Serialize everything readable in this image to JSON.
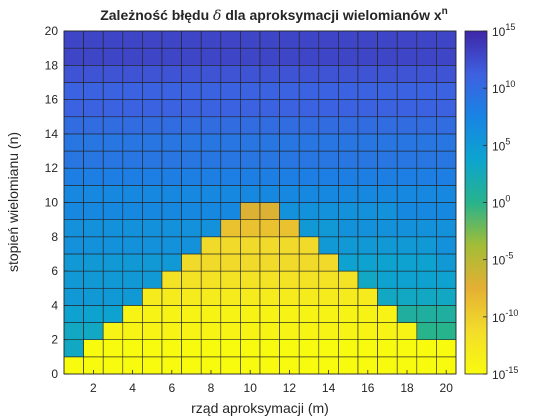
{
  "chart_data": {
    "type": "heatmap",
    "title": {
      "main": "Zależność błędu",
      "symbol": "δ",
      "rest": "dla aproksymacji wielomianów x",
      "superscript": "n"
    },
    "xlabel": "rząd aproksymacji (m)",
    "ylabel": "stopień wielomianu (n)",
    "x_ticks": [
      2,
      4,
      6,
      8,
      10,
      12,
      14,
      16,
      18,
      20
    ],
    "y_ticks": [
      0,
      2,
      4,
      6,
      8,
      10,
      12,
      14,
      16,
      18,
      20
    ],
    "m_range": [
      1,
      21
    ],
    "n_range": [
      0,
      20
    ],
    "color_scale": "log",
    "color_range_exponent": [
      -15,
      15
    ],
    "colorbar_ticks": [
      {
        "base": "10",
        "exp": "15"
      },
      {
        "base": "10",
        "exp": "10"
      },
      {
        "base": "10",
        "exp": "5"
      },
      {
        "base": "10",
        "exp": "0"
      },
      {
        "base": "10",
        "exp": "-5"
      },
      {
        "base": "10",
        "exp": "-10"
      },
      {
        "base": "10",
        "exp": "-15"
      }
    ],
    "colormap": "parula",
    "rows_description": "values are log10 of error; rows listed from n=0 (bottom) to n=19 (top), columns m=1..20",
    "values_log10": [
      [
        -15,
        -16,
        -16,
        -16,
        -16,
        -16,
        -16,
        -16,
        -16,
        -16,
        -16,
        -16,
        -16,
        -16,
        -16,
        -16,
        -16,
        -16,
        -16,
        -15
      ],
      [
        3,
        -15,
        -15,
        -15,
        -15,
        -15,
        -15,
        -15,
        -15,
        -15,
        -15,
        -15,
        -15,
        -15,
        -15,
        -15,
        -15,
        -15,
        -15,
        -15
      ],
      [
        3,
        3,
        -14,
        -14,
        -14,
        -14,
        -14,
        -14,
        -14,
        -14,
        -14,
        -14,
        -14,
        -14,
        -14,
        -14,
        -14,
        -14,
        0,
        0
      ],
      [
        4,
        4,
        4,
        -14,
        -14,
        -14,
        -14,
        -14,
        -14,
        -14,
        -14,
        -14,
        -14,
        -14,
        -14,
        -14,
        -14,
        1,
        1,
        1
      ],
      [
        5,
        5,
        5,
        5,
        -13,
        -13,
        -13,
        -13,
        -13,
        -13,
        -13,
        -13,
        -13,
        -13,
        -13,
        -13,
        3,
        3,
        3,
        3
      ],
      [
        5,
        5,
        5,
        5,
        5,
        -12,
        -12,
        -12,
        -12,
        -12,
        -12,
        -12,
        -12,
        -12,
        -12,
        3,
        4,
        4,
        4,
        4
      ],
      [
        5,
        5,
        5,
        5,
        5,
        5,
        -11,
        -11,
        -11,
        -11,
        -11,
        -11,
        -11,
        -11,
        4,
        4,
        4,
        4,
        4,
        5
      ],
      [
        6,
        6,
        6,
        6,
        6,
        6,
        6,
        -11,
        -11,
        -11,
        -11,
        -11,
        -11,
        5,
        5,
        5,
        5,
        5,
        5,
        6
      ],
      [
        6,
        6,
        6,
        6,
        6,
        6,
        6,
        6,
        -9,
        -9,
        -9,
        -9,
        5,
        5,
        6,
        6,
        6,
        6,
        6,
        6
      ],
      [
        7,
        7,
        7,
        7,
        7,
        7,
        7,
        7,
        7,
        -7,
        -7,
        6,
        6,
        6,
        6,
        6,
        6,
        7,
        7,
        7
      ],
      [
        7,
        7,
        7,
        7,
        7,
        7,
        7,
        7,
        7,
        7,
        7,
        7,
        7,
        7,
        7,
        7,
        7,
        7,
        7,
        7
      ],
      [
        8,
        8,
        8,
        8,
        8,
        8,
        8,
        8,
        8,
        8,
        8,
        8,
        8,
        8,
        8,
        8,
        8,
        8,
        8,
        8
      ],
      [
        9,
        9,
        9,
        9,
        9,
        9,
        9,
        9,
        9,
        9,
        9,
        9,
        9,
        9,
        9,
        9,
        9,
        9,
        9,
        9
      ],
      [
        9,
        9,
        9,
        9,
        9,
        9,
        9,
        9,
        9,
        9,
        9,
        9,
        9,
        9,
        9,
        9,
        9,
        9,
        9,
        9
      ],
      [
        10,
        10,
        10,
        10,
        10,
        10,
        10,
        10,
        10,
        10,
        10,
        10,
        10,
        10,
        10,
        10,
        10,
        10,
        10,
        10
      ],
      [
        11,
        11,
        11,
        11,
        11,
        11,
        11,
        11,
        11,
        11,
        11,
        11,
        11,
        11,
        11,
        11,
        11,
        11,
        11,
        11
      ],
      [
        11,
        11,
        11,
        11,
        11,
        11,
        11,
        11,
        11,
        11,
        11,
        11,
        11,
        11,
        11,
        11,
        11,
        11,
        11,
        11
      ],
      [
        12,
        12,
        12,
        12,
        12,
        12,
        12,
        12,
        12,
        12,
        12,
        12,
        12,
        12,
        12,
        12,
        12,
        12,
        12,
        12
      ],
      [
        13,
        13,
        13,
        13,
        13,
        13,
        13,
        13,
        13,
        13,
        13,
        13,
        13,
        13,
        13,
        13,
        13,
        13,
        13,
        13
      ],
      [
        13,
        13,
        13,
        13,
        13,
        13,
        13,
        13,
        13,
        13,
        13,
        13,
        13,
        13,
        13,
        13,
        13,
        13,
        13,
        13
      ]
    ],
    "grid": false,
    "colorbar": "right"
  }
}
